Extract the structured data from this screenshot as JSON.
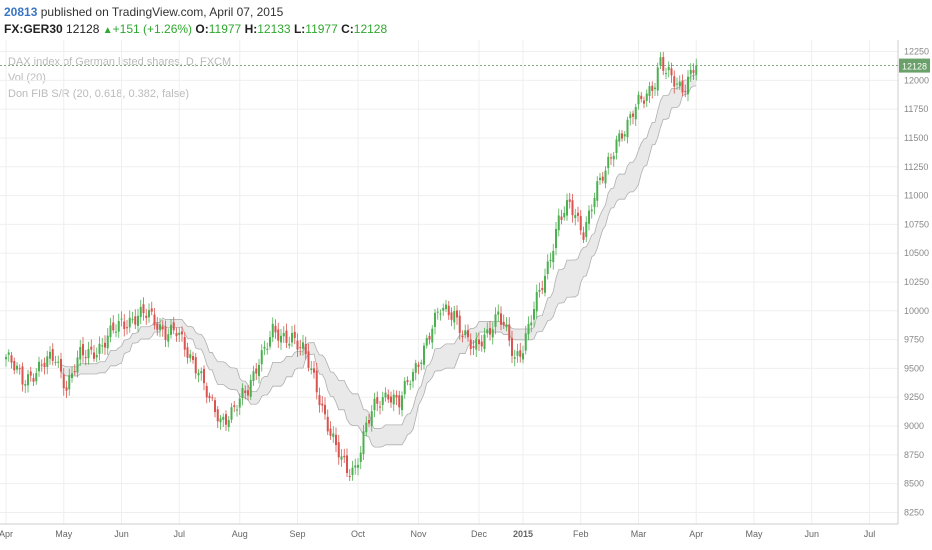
{
  "header": {
    "user": "20813",
    "published": "published on TradingView.com, April 07, 2015",
    "symbol": "FX:GER30",
    "last": "12128",
    "change": "+151 (+1.26%)",
    "o_label": "O:",
    "o_value": "11977",
    "h_label": "H:",
    "h_value": "12133",
    "l_label": "L:",
    "l_value": "11977",
    "c_label": "C:",
    "c_value": "12128"
  },
  "legend": {
    "title": "DAX index of German listed shares, D, FXCM",
    "vol": "Vol (20)",
    "fib": "Don FIB S/R (20, 0.618, 0.382, false)"
  },
  "colors": {
    "up": "#4caf50",
    "down": "#d9534f",
    "band_fill": "#e9e9e9",
    "band_line": "#b0b0b0",
    "price_tag": "#6aa06a",
    "grid": "#efefef"
  },
  "chart_data": {
    "type": "candlestick",
    "ylim": [
      8150,
      12350
    ],
    "yticks": [
      8250,
      8500,
      8750,
      9000,
      9250,
      9500,
      9750,
      10000,
      10250,
      10500,
      10750,
      11000,
      11250,
      11500,
      11750,
      12000,
      12250
    ],
    "last_price": 12128,
    "x_months": [
      "Apr",
      "May",
      "Jun",
      "Jul",
      "Aug",
      "Sep",
      "Oct",
      "Nov",
      "Dec",
      "2015",
      "Feb",
      "Mar",
      "Apr",
      "May",
      "Jun",
      "Jul"
    ],
    "close_keypoints": [
      [
        0,
        9600
      ],
      [
        6,
        9400
      ],
      [
        12,
        9500
      ],
      [
        18,
        9600
      ],
      [
        22,
        9350
      ],
      [
        27,
        9600
      ],
      [
        35,
        9700
      ],
      [
        42,
        9900
      ],
      [
        48,
        9950
      ],
      [
        52,
        9960
      ],
      [
        55,
        9900
      ],
      [
        58,
        9820
      ],
      [
        62,
        9800
      ],
      [
        66,
        9650
      ],
      [
        70,
        9500
      ],
      [
        74,
        9200
      ],
      [
        78,
        9050
      ],
      [
        83,
        9150
      ],
      [
        88,
        9300
      ],
      [
        92,
        9600
      ],
      [
        97,
        9800
      ],
      [
        100,
        9750
      ],
      [
        104,
        9800
      ],
      [
        108,
        9650
      ],
      [
        112,
        9400
      ],
      [
        116,
        9100
      ],
      [
        120,
        8800
      ],
      [
        124,
        8600
      ],
      [
        127,
        8650
      ],
      [
        131,
        9000
      ],
      [
        134,
        9150
      ],
      [
        139,
        9300
      ],
      [
        143,
        9200
      ],
      [
        148,
        9450
      ],
      [
        153,
        9750
      ],
      [
        158,
        10000
      ],
      [
        163,
        10000
      ],
      [
        166,
        9800
      ],
      [
        170,
        9650
      ],
      [
        174,
        9800
      ],
      [
        179,
        9950
      ],
      [
        182,
        9800
      ],
      [
        185,
        9600
      ],
      [
        188,
        9700
      ],
      [
        192,
        10000
      ],
      [
        196,
        10300
      ],
      [
        201,
        10800
      ],
      [
        205,
        10900
      ],
      [
        210,
        10700
      ],
      [
        214,
        11000
      ],
      [
        218,
        11200
      ],
      [
        222,
        11500
      ],
      [
        226,
        11600
      ],
      [
        230,
        11800
      ],
      [
        233,
        11900
      ],
      [
        236,
        12000
      ],
      [
        238,
        12150
      ],
      [
        240,
        12050
      ],
      [
        243,
        12000
      ],
      [
        246,
        11950
      ],
      [
        249,
        12050
      ],
      [
        251,
        12128
      ]
    ]
  }
}
